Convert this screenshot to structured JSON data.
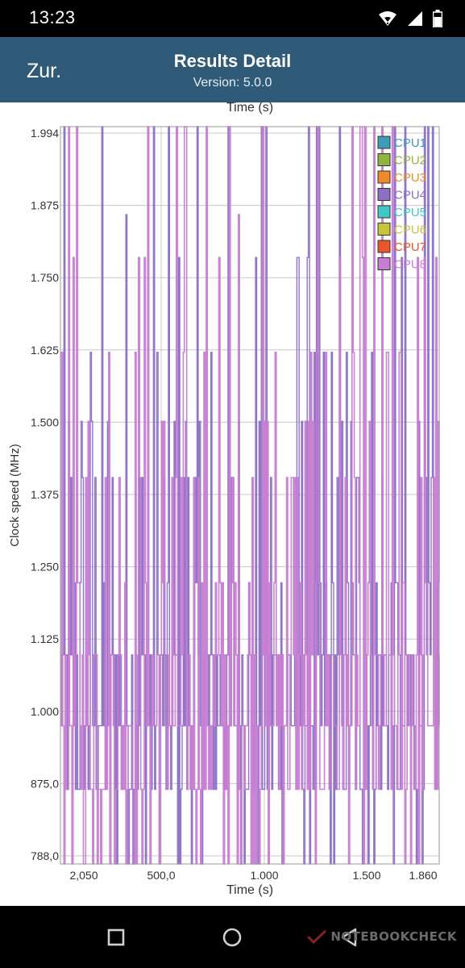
{
  "status_bar": {
    "time": "13:23"
  },
  "app_bar": {
    "back_label": "Zur.",
    "title": "Results Detail",
    "subtitle": "Version: 5.0.0"
  },
  "colors": {
    "app_bar": "#2f5a78",
    "grid": "#c8c8c8",
    "cpu8_line": "#c77dd2",
    "cpu4_line": "#8a6fc4"
  },
  "watermark": {
    "text": "NOTEBOOKCHECK"
  },
  "chart_data": {
    "type": "line",
    "top_axis_label": "Time (s)",
    "xlabel": "Time (s)",
    "ylabel": "Clock speed (MHz)",
    "x_tick_labels": [
      "2,050",
      "500,0",
      "1.000",
      "1.500",
      "1.860"
    ],
    "y_tick_labels": [
      "1.994",
      "1.875",
      "1.750",
      "1.625",
      "1.500",
      "1.375",
      "1.250",
      "1.125",
      "1.000",
      "875,0",
      "788,0"
    ],
    "ylim": [
      788,
      1994
    ],
    "xlim": [
      2.05,
      1860
    ],
    "grid": true,
    "legend_position": "top-right",
    "series": [
      {
        "name": "CPU1",
        "color": "#3e9bb9"
      },
      {
        "name": "CPU2",
        "color": "#93b43c"
      },
      {
        "name": "CPU3",
        "color": "#ee8a2c"
      },
      {
        "name": "CPU4",
        "color": "#8a6fc4"
      },
      {
        "name": "CPU5",
        "color": "#3fc8c6"
      },
      {
        "name": "CPU6",
        "color": "#c9c33c"
      },
      {
        "name": "CPU7",
        "color": "#e8562a"
      },
      {
        "name": "CPU8",
        "color": "#c77dd2"
      }
    ],
    "frequency_levels": [
      788,
      910,
      1014,
      1130,
      1248,
      1420,
      1512,
      1625,
      1780,
      1850,
      1994
    ]
  }
}
